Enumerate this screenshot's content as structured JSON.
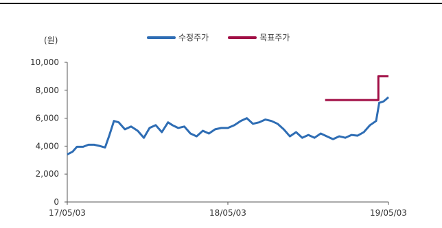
{
  "chart_data": {
    "type": "line",
    "unit_label": "(원)",
    "ylim": [
      0,
      10000
    ],
    "yticks": [
      "10,000",
      "8,000",
      "6,000",
      "4,000",
      "2,000",
      "0"
    ],
    "ytick_values": [
      10000,
      8000,
      6000,
      4000,
      2000,
      0
    ],
    "xticks": [
      "17/05/03",
      "18/05/03",
      "19/05/03"
    ],
    "x_range": [
      "17/05/03",
      "19/05/03"
    ],
    "legend_position": "top-center",
    "series": [
      {
        "name": "수정주가",
        "color": "#2E6DB4",
        "points": [
          [
            "17/05/03",
            3400
          ],
          [
            "17/05/15",
            3600
          ],
          [
            "17/05/25",
            3950
          ],
          [
            "17/06/08",
            3950
          ],
          [
            "17/06/20",
            4100
          ],
          [
            "17/07/03",
            4100
          ],
          [
            "17/07/17",
            4000
          ],
          [
            "17/07/28",
            3900
          ],
          [
            "17/08/07",
            4800
          ],
          [
            "17/08/17",
            5800
          ],
          [
            "17/08/28",
            5700
          ],
          [
            "17/09/11",
            5200
          ],
          [
            "17/09/25",
            5400
          ],
          [
            "17/10/10",
            5100
          ],
          [
            "17/10/24",
            4600
          ],
          [
            "17/11/06",
            5300
          ],
          [
            "17/11/20",
            5500
          ],
          [
            "17/12/04",
            5000
          ],
          [
            "17/12/18",
            5700
          ],
          [
            "17/12/28",
            5500
          ],
          [
            "18/01/10",
            5300
          ],
          [
            "18/01/24",
            5400
          ],
          [
            "18/02/07",
            4900
          ],
          [
            "18/02/21",
            4700
          ],
          [
            "18/03/07",
            5100
          ],
          [
            "18/03/21",
            4900
          ],
          [
            "18/04/04",
            5200
          ],
          [
            "18/04/18",
            5300
          ],
          [
            "18/05/03",
            5300
          ],
          [
            "18/05/18",
            5500
          ],
          [
            "18/06/01",
            5800
          ],
          [
            "18/06/15",
            6000
          ],
          [
            "18/06/29",
            5600
          ],
          [
            "18/07/13",
            5700
          ],
          [
            "18/07/27",
            5900
          ],
          [
            "18/08/10",
            5800
          ],
          [
            "18/08/24",
            5600
          ],
          [
            "18/09/07",
            5200
          ],
          [
            "18/09/21",
            4700
          ],
          [
            "18/10/05",
            5000
          ],
          [
            "18/10/19",
            4600
          ],
          [
            "18/11/02",
            4800
          ],
          [
            "18/11/16",
            4600
          ],
          [
            "18/11/30",
            4900
          ],
          [
            "18/12/14",
            4700
          ],
          [
            "18/12/28",
            4500
          ],
          [
            "19/01/11",
            4700
          ],
          [
            "19/01/25",
            4600
          ],
          [
            "19/02/08",
            4800
          ],
          [
            "19/02/22",
            4750
          ],
          [
            "19/03/08",
            5000
          ],
          [
            "19/03/22",
            5500
          ],
          [
            "19/04/05",
            5800
          ],
          [
            "19/04/12",
            7100
          ],
          [
            "19/04/22",
            7200
          ],
          [
            "19/05/03",
            7500
          ]
        ]
      },
      {
        "name": "목표주가",
        "color": "#A10E45",
        "points": [
          [
            "18/12/10",
            7300
          ],
          [
            "19/04/10",
            7300
          ],
          [
            "19/04/10",
            9000
          ],
          [
            "19/05/03",
            9000
          ]
        ]
      }
    ]
  }
}
